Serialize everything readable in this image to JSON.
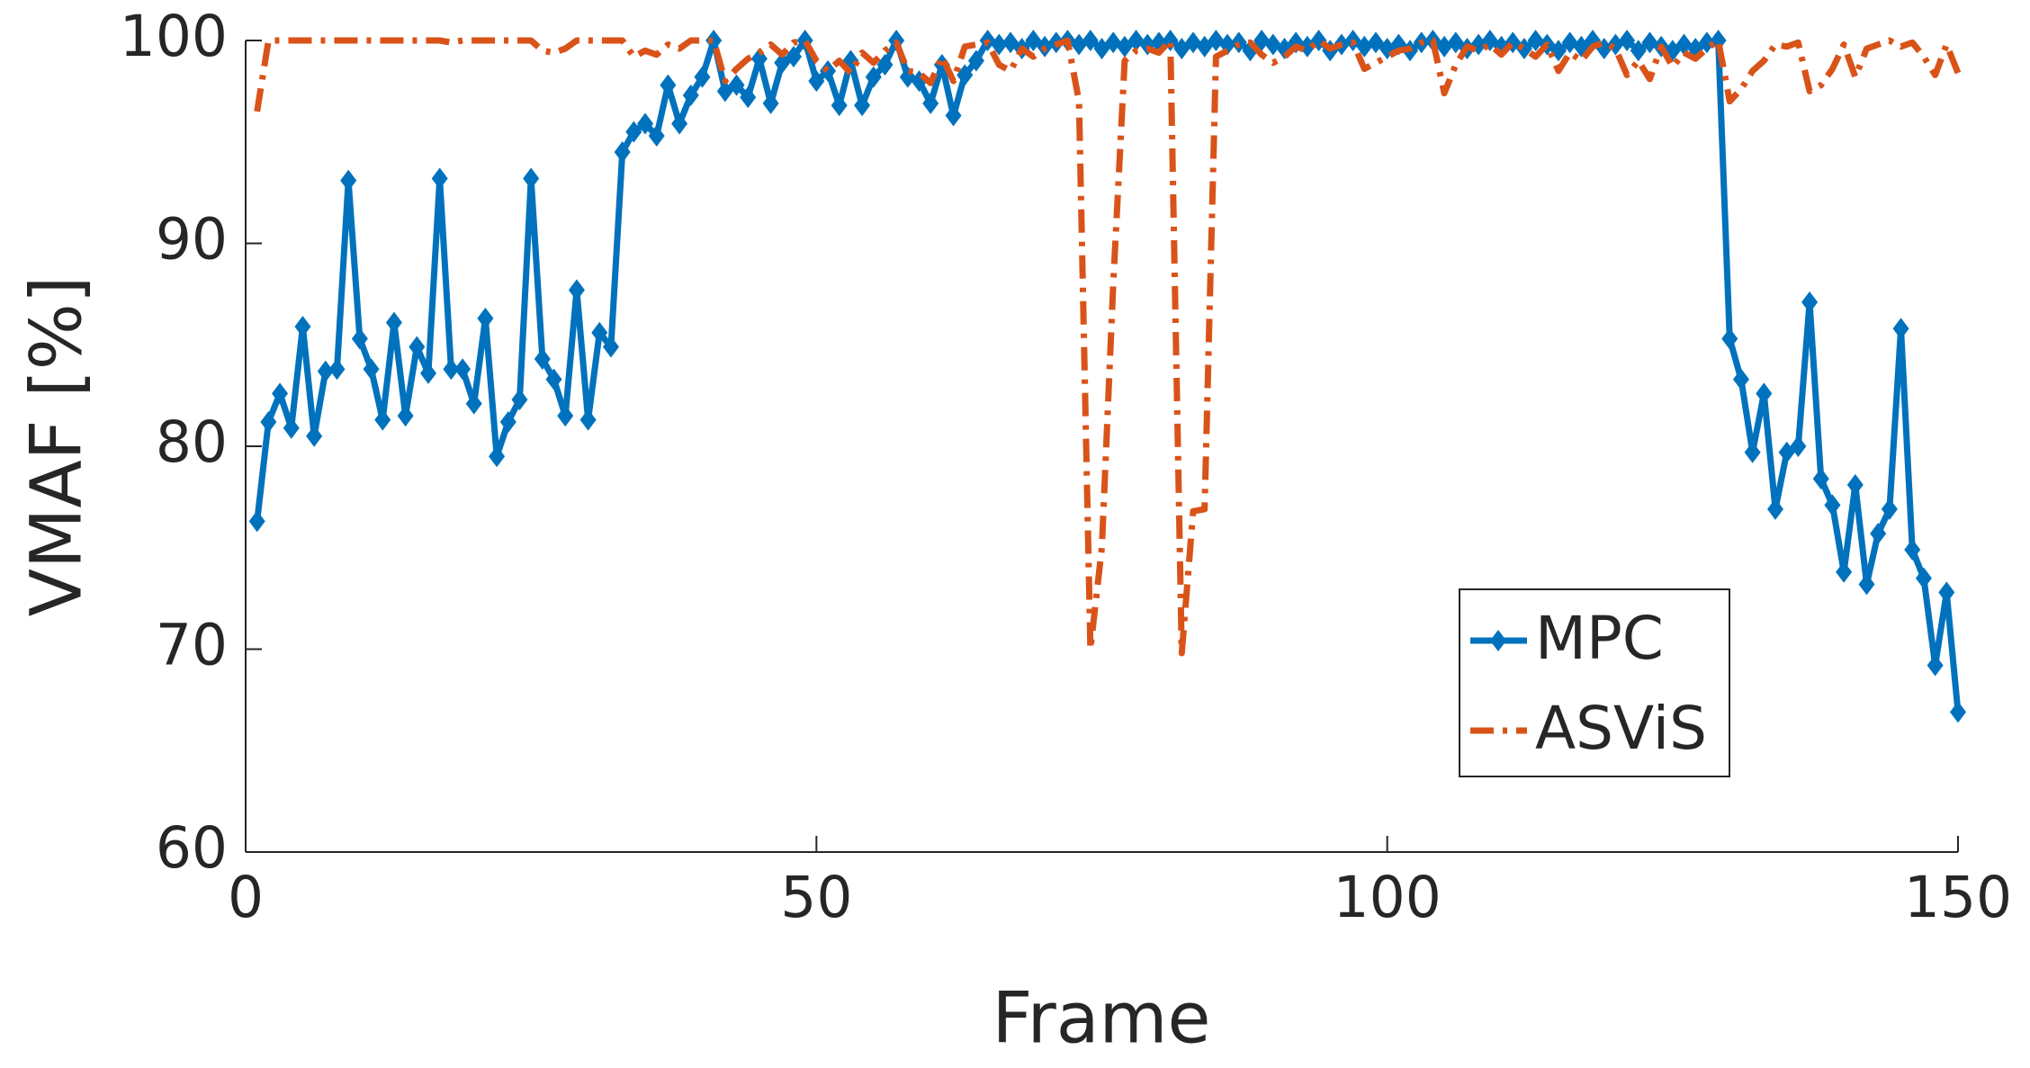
{
  "chart_data": {
    "type": "line",
    "xlabel": "Frame",
    "ylabel": "VMAF [%]",
    "x": [
      1,
      2,
      3,
      4,
      5,
      6,
      7,
      8,
      9,
      10,
      11,
      12,
      13,
      14,
      15,
      16,
      17,
      18,
      19,
      20,
      21,
      22,
      23,
      24,
      25,
      26,
      27,
      28,
      29,
      30,
      31,
      32,
      33,
      34,
      35,
      36,
      37,
      38,
      39,
      40,
      41,
      42,
      43,
      44,
      45,
      46,
      47,
      48,
      49,
      50,
      51,
      52,
      53,
      54,
      55,
      56,
      57,
      58,
      59,
      60,
      61,
      62,
      63,
      64,
      65,
      66,
      67,
      68,
      69,
      70,
      71,
      72,
      73,
      74,
      75,
      76,
      77,
      78,
      79,
      80,
      81,
      82,
      83,
      84,
      85,
      86,
      87,
      88,
      89,
      90,
      91,
      92,
      93,
      94,
      95,
      96,
      97,
      98,
      99,
      100,
      101,
      102,
      103,
      104,
      105,
      106,
      107,
      108,
      109,
      110,
      111,
      112,
      113,
      114,
      115,
      116,
      117,
      118,
      119,
      120,
      121,
      122,
      123,
      124,
      125,
      126,
      127,
      128,
      129,
      130,
      131,
      132,
      133,
      134,
      135,
      136,
      137,
      138,
      139,
      140,
      141,
      142,
      143,
      144,
      145,
      146,
      147,
      148,
      149,
      150
    ],
    "series": [
      {
        "name": "MPC",
        "color": "#0072bd",
        "marker": "diamond",
        "linestyle": "solid",
        "values": [
          76.3,
          81.2,
          82.6,
          80.9,
          85.9,
          80.5,
          83.7,
          83.8,
          93.1,
          85.3,
          83.8,
          81.3,
          86.1,
          81.5,
          84.9,
          83.6,
          93.2,
          83.8,
          83.8,
          82.1,
          86.3,
          79.5,
          81.2,
          82.3,
          93.2,
          84.3,
          83.3,
          81.5,
          87.7,
          81.3,
          85.6,
          84.9,
          94.5,
          95.5,
          95.9,
          95.3,
          97.8,
          95.9,
          97.3,
          98.2,
          100,
          97.5,
          97.8,
          97.2,
          99.1,
          96.9,
          98.9,
          99.2,
          100,
          98.0,
          98.5,
          96.8,
          99.0,
          96.8,
          98.2,
          98.8,
          100,
          98.2,
          98.0,
          96.9,
          98.8,
          96.3,
          98.3,
          99.0,
          100,
          99.8,
          99.9,
          99.6,
          100,
          99.7,
          99.9,
          100,
          99.8,
          100,
          99.6,
          99.9,
          99.7,
          100,
          99.8,
          99.9,
          100,
          99.6,
          99.9,
          99.7,
          100,
          99.8,
          99.9,
          99.5,
          100,
          99.8,
          99.6,
          99.9,
          99.7,
          100,
          99.5,
          99.8,
          100,
          99.7,
          99.9,
          99.6,
          99.8,
          99.5,
          99.9,
          100,
          99.7,
          99.9,
          99.6,
          99.8,
          100,
          99.7,
          99.9,
          99.6,
          100,
          99.8,
          99.5,
          99.9,
          99.7,
          100,
          99.6,
          99.8,
          100,
          99.5,
          99.9,
          99.7,
          99.5,
          99.8,
          99.6,
          99.9,
          100,
          85.3,
          83.3,
          79.7,
          82.6,
          76.9,
          79.7,
          80.0,
          87.1,
          78.4,
          77.1,
          73.8,
          78.1,
          73.2,
          75.7,
          76.9,
          85.8,
          74.9,
          73.5,
          69.2,
          72.8,
          66.9
        ]
      },
      {
        "name": "ASViS",
        "color": "#d95319",
        "marker": "none",
        "linestyle": "dashdot",
        "values": [
          96.5,
          100,
          100,
          100,
          100,
          100,
          100,
          100,
          100,
          100,
          100,
          100,
          100,
          100,
          100,
          100,
          100,
          99.9,
          100,
          100,
          100,
          100,
          100,
          100,
          100,
          99.5,
          99.4,
          99.6,
          100,
          100,
          100,
          100,
          100,
          99.2,
          99.5,
          99.3,
          99.8,
          99.6,
          100,
          100,
          100,
          98.0,
          98.6,
          99.1,
          99.4,
          99.8,
          99.3,
          99.9,
          100,
          99.0,
          98.5,
          99.0,
          98.4,
          99.4,
          98.9,
          99.5,
          99.9,
          98.5,
          98.4,
          97.9,
          99.2,
          98.0,
          99.7,
          99.8,
          99.9,
          98.8,
          98.5,
          99.6,
          99.2,
          99.6,
          99.8,
          100,
          97.0,
          70,
          75,
          88,
          99,
          99.5,
          99.6,
          99.4,
          100,
          69.8,
          76.8,
          76.9,
          99.2,
          99.5,
          99.8,
          99.9,
          99.3,
          98.9,
          99.2,
          99.7,
          99.5,
          100,
          99.6,
          99.8,
          99.9,
          98.6,
          98.9,
          99.2,
          99.5,
          99.6,
          99.9,
          100,
          97.4,
          98.8,
          99.7,
          99.5,
          99.8,
          99.3,
          99.9,
          99.6,
          99.2,
          99.8,
          98.5,
          99.4,
          99.0,
          99.7,
          99.9,
          99.6,
          98.3,
          99.0,
          98.1,
          99.7,
          98.7,
          99.4,
          99.1,
          99.6,
          100,
          97.0,
          97.6,
          98.5,
          99.0,
          99.8,
          99.7,
          99.9,
          97.5,
          97.8,
          98.6,
          99.8,
          98.2,
          99.6,
          99.8,
          100,
          99.7,
          99.9,
          99.2,
          98.3,
          99.8,
          98.4
        ]
      }
    ],
    "xlim": [
      0,
      150
    ],
    "xticks": [
      0,
      50,
      100,
      150
    ],
    "ylim": [
      60,
      100
    ],
    "yticks": [
      60,
      70,
      80,
      90,
      100
    ],
    "grid": false,
    "legend": "lower right"
  }
}
